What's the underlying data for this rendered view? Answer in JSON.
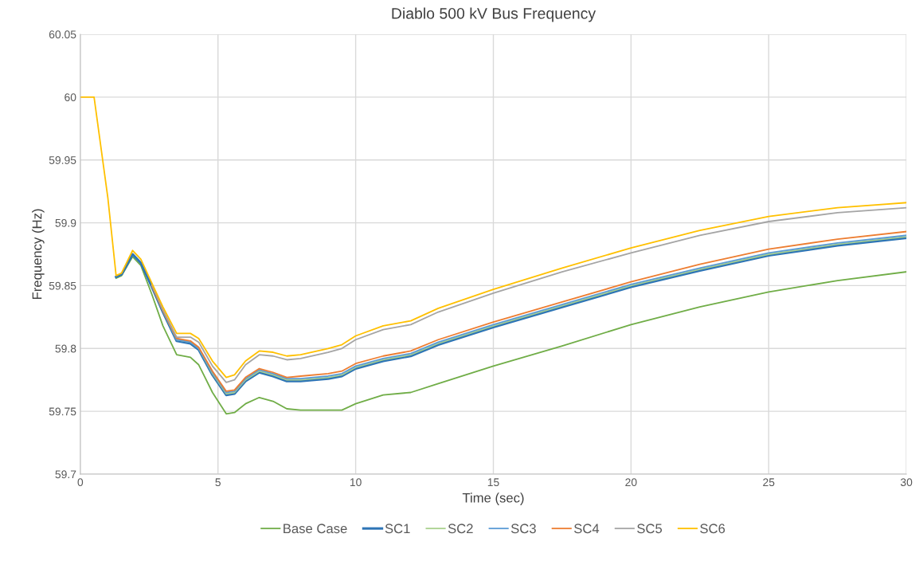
{
  "chart_data": {
    "type": "line",
    "title": "Diablo 500 kV Bus Frequency",
    "xlabel": "Time (sec)",
    "ylabel": "Frequency (Hz)",
    "x": [
      0,
      0.5,
      1.0,
      1.3,
      1.5,
      1.9,
      2.2,
      2.6,
      3.0,
      3.5,
      4.0,
      4.3,
      4.8,
      5.3,
      5.6,
      6.0,
      6.5,
      7.0,
      7.5,
      8.0,
      9.0,
      9.5,
      10,
      11,
      12,
      13,
      15,
      17.5,
      20,
      22.5,
      25,
      27.5,
      30
    ],
    "series": [
      {
        "name": "Base Case",
        "color": "#70ad47",
        "values": [
          null,
          null,
          null,
          59.856,
          59.858,
          59.873,
          59.866,
          59.843,
          59.818,
          59.795,
          59.793,
          59.787,
          59.765,
          59.748,
          59.749,
          59.756,
          59.761,
          59.758,
          59.752,
          59.751,
          59.751,
          59.751,
          59.756,
          59.763,
          59.765,
          59.772,
          59.786,
          59.802,
          59.819,
          59.833,
          59.845,
          59.854,
          59.861
        ]
      },
      {
        "name": "SC1",
        "color": "#2e75b6",
        "values": [
          null,
          null,
          null,
          59.857,
          59.859,
          59.875,
          59.868,
          59.849,
          59.829,
          59.806,
          59.804,
          59.799,
          59.779,
          59.763,
          59.764,
          59.774,
          59.781,
          59.778,
          59.774,
          59.774,
          59.776,
          59.778,
          59.784,
          59.79,
          59.794,
          59.803,
          59.817,
          59.833,
          59.849,
          59.862,
          59.874,
          59.882,
          59.888
        ]
      },
      {
        "name": "SC2",
        "color": "#a9d18e",
        "values": [
          null,
          null,
          null,
          null,
          null,
          null,
          null,
          59.85,
          59.83,
          59.807,
          59.805,
          59.8,
          59.78,
          59.764,
          59.765,
          59.775,
          59.782,
          59.779,
          59.775,
          59.775,
          59.777,
          59.779,
          59.785,
          59.791,
          59.795,
          59.804,
          59.818,
          59.834,
          59.85,
          59.863,
          59.875,
          59.883,
          59.889
        ]
      },
      {
        "name": "SC3",
        "color": "#5b9bd5",
        "values": [
          null,
          null,
          null,
          null,
          null,
          null,
          null,
          59.85,
          59.83,
          59.807,
          59.805,
          59.8,
          59.781,
          59.765,
          59.766,
          59.776,
          59.783,
          59.78,
          59.776,
          59.776,
          59.778,
          59.78,
          59.786,
          59.792,
          59.796,
          59.805,
          59.819,
          59.835,
          59.851,
          59.864,
          59.876,
          59.884,
          59.89
        ]
      },
      {
        "name": "SC4",
        "color": "#ed7d31",
        "values": [
          null,
          null,
          null,
          null,
          null,
          null,
          null,
          59.85,
          59.83,
          59.808,
          59.806,
          59.801,
          59.782,
          59.766,
          59.767,
          59.777,
          59.784,
          59.781,
          59.777,
          59.778,
          59.78,
          59.782,
          59.788,
          59.794,
          59.798,
          59.807,
          59.821,
          59.837,
          59.853,
          59.867,
          59.879,
          59.887,
          59.893
        ]
      },
      {
        "name": "SC5",
        "color": "#a5a5a5",
        "values": [
          null,
          null,
          null,
          null,
          null,
          null,
          null,
          59.851,
          59.831,
          59.809,
          59.809,
          59.805,
          59.786,
          59.773,
          59.775,
          59.787,
          59.795,
          59.794,
          59.791,
          59.792,
          59.797,
          59.8,
          59.807,
          59.815,
          59.819,
          59.829,
          59.844,
          59.861,
          59.876,
          59.89,
          59.901,
          59.908,
          59.912
        ]
      },
      {
        "name": "SC6",
        "color": "#ffc000",
        "values": [
          60,
          60,
          59.92,
          59.858,
          59.86,
          59.878,
          59.871,
          59.852,
          59.833,
          59.812,
          59.812,
          59.808,
          59.79,
          59.777,
          59.779,
          59.79,
          59.798,
          59.797,
          59.794,
          59.795,
          59.8,
          59.803,
          59.81,
          59.818,
          59.822,
          59.832,
          59.847,
          59.864,
          59.88,
          59.894,
          59.905,
          59.912,
          59.916
        ]
      }
    ],
    "xlim": [
      0,
      30
    ],
    "xticks": [
      0,
      5,
      10,
      15,
      20,
      25,
      30
    ],
    "ylim": [
      59.7,
      60.05
    ],
    "yticks": [
      59.7,
      59.75,
      59.8,
      59.85,
      59.9,
      59.95,
      60,
      60.05
    ],
    "grid": true,
    "legend": "bottom",
    "marker": "none",
    "line_style": "solid"
  }
}
